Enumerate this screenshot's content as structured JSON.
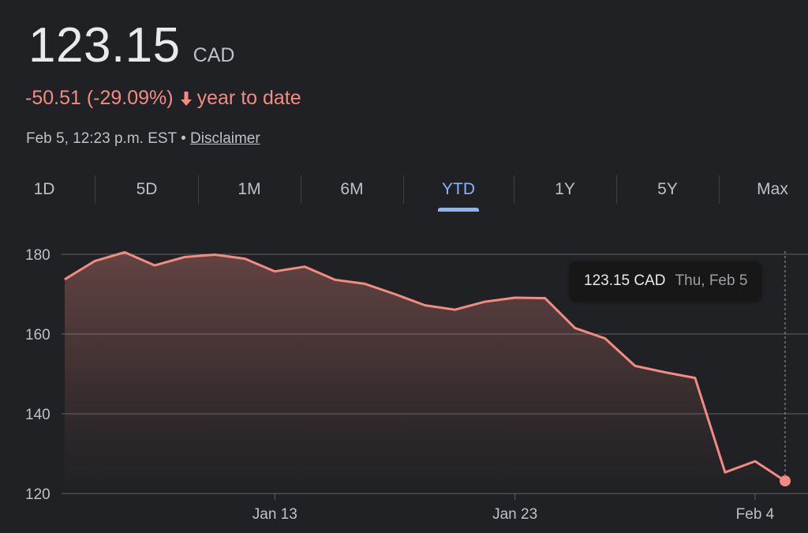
{
  "quote": {
    "price": "123.15",
    "currency": "CAD",
    "change": "-50.51 (-29.09%)",
    "period": "year to date",
    "timestamp": "Feb 5, 12:23 p.m. EST",
    "separator": "•",
    "disclaimer": "Disclaimer"
  },
  "tabs": [
    "1D",
    "5D",
    "1M",
    "6M",
    "YTD",
    "1Y",
    "5Y",
    "Max"
  ],
  "active_tab": "YTD",
  "tooltip": {
    "price": "123.15 CAD",
    "date": "Thu, Feb 5"
  },
  "colors": {
    "background": "#202124",
    "negative": "#f28b82",
    "accent": "#8ab4f8",
    "grid": "#5f6368"
  },
  "chart_data": {
    "type": "area",
    "x": [
      "Jan 2",
      "Jan 3",
      "Jan 6",
      "Jan 7",
      "Jan 8",
      "Jan 9",
      "Jan 10",
      "Jan 13",
      "Jan 14",
      "Jan 15",
      "Jan 16",
      "Jan 17",
      "Jan 20",
      "Jan 21",
      "Jan 22",
      "Jan 23",
      "Jan 24",
      "Jan 27",
      "Jan 28",
      "Jan 29",
      "Jan 30",
      "Jan 31",
      "Feb 3",
      "Feb 4",
      "Feb 5"
    ],
    "series": [
      {
        "values": [
          173.7,
          178.3,
          180.5,
          177.2,
          179.3,
          179.9,
          178.9,
          175.7,
          176.9,
          173.6,
          172.6,
          170.0,
          167.2,
          166.1,
          168.1,
          169.1,
          169.0,
          161.5,
          158.9,
          152.0,
          150.4,
          149.0,
          125.3,
          128.1,
          123.15
        ]
      }
    ],
    "ylim": [
      120,
      185
    ],
    "yticks": [
      120,
      140,
      160,
      180
    ],
    "xticks": [
      "Jan 13",
      "Jan 23",
      "Feb 4"
    ],
    "grid": true
  }
}
